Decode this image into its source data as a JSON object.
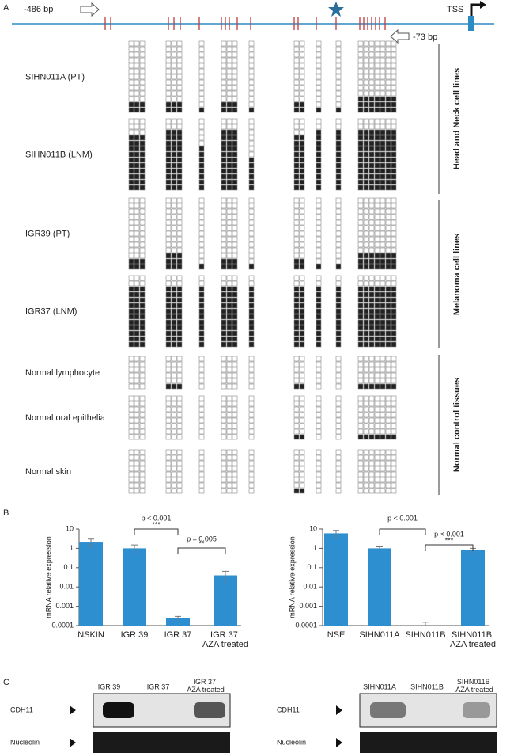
{
  "panel_labels": [
    "A",
    "B",
    "C"
  ],
  "panel_a": {
    "start_label": "-486 bp",
    "end_label": "-73 bp",
    "tss_label": "TSS",
    "samples": [
      {
        "name": "SIHN011A (PT)",
        "rows": 13,
        "methylated": [
          2,
          2,
          1,
          2,
          1,
          2,
          1,
          1,
          3
        ]
      },
      {
        "name": "SIHN011B (LNM)",
        "rows": 13,
        "methylated": [
          10,
          11,
          8,
          11,
          6,
          10,
          11,
          11,
          11
        ]
      },
      {
        "name": "IGR39 (PT)",
        "rows": 13,
        "methylated": [
          2,
          3,
          1,
          2,
          1,
          2,
          1,
          1,
          3
        ]
      },
      {
        "name": "IGR37 (LNM)",
        "rows": 13,
        "methylated": [
          11,
          11,
          11,
          11,
          11,
          11,
          11,
          11,
          11
        ]
      },
      {
        "name": "Normal lymphocyte",
        "rows": 6,
        "methylated": [
          0,
          1,
          0,
          0,
          0,
          1,
          0,
          0,
          1
        ]
      },
      {
        "name": "Normal oral epithelia",
        "rows": 8,
        "methylated": [
          0,
          0,
          0,
          0,
          0,
          1,
          0,
          0,
          1
        ]
      },
      {
        "name": "Normal skin",
        "rows": 8,
        "methylated": [
          0,
          0,
          0,
          0,
          0,
          1,
          0,
          0,
          0
        ]
      }
    ],
    "groups": [
      "Head and Neck cell lines",
      "Melanoma cell lines",
      "Normal control tissues"
    ]
  },
  "chart_data": [
    {
      "type": "bar",
      "y_label": "mRNA relative expression",
      "categories": [
        "NSKIN",
        "IGR 39",
        "IGR 37",
        "IGR 37 AZA treated"
      ],
      "values": [
        2,
        1,
        0.00025,
        0.04
      ],
      "errors": [
        1,
        0.5,
        5e-05,
        0.025
      ],
      "color": "#2d8fd0",
      "log_scale": true,
      "ylim": [
        0.0001,
        10
      ],
      "yticks": [
        0.0001,
        0.001,
        0.01,
        0.1,
        1,
        10
      ],
      "annotations": [
        {
          "text": "p < 0.001",
          "stars": "***"
        },
        {
          "text": "p = 0.005",
          "stars": "**"
        }
      ]
    },
    {
      "type": "bar",
      "y_label": "mRNA relative expression",
      "categories": [
        "NSE",
        "SIHN011A",
        "SIHN011B",
        "SIHN011B AZA treated"
      ],
      "values": [
        6,
        1,
        0.0001,
        0.8
      ],
      "errors": [
        2.5,
        0.2,
        5e-05,
        0.2
      ],
      "color": "#2d8fd0",
      "log_scale": true,
      "ylim": [
        0.0001,
        10
      ],
      "yticks": [
        0.0001,
        0.001,
        0.01,
        0.1,
        1,
        10
      ],
      "annotations": [
        {
          "text": "p < 0.001",
          "stars": ""
        },
        {
          "text": "p < 0.001",
          "stars": "***"
        }
      ]
    }
  ],
  "panel_c": {
    "left_lanes": [
      "IGR 39",
      "IGR 37",
      "IGR 37 AZA treated"
    ],
    "right_lanes": [
      "SIHN011A",
      "SIHN011B",
      "SIHN011B AZA treated"
    ],
    "rows": [
      "CDH11",
      "Nucleolin"
    ]
  }
}
